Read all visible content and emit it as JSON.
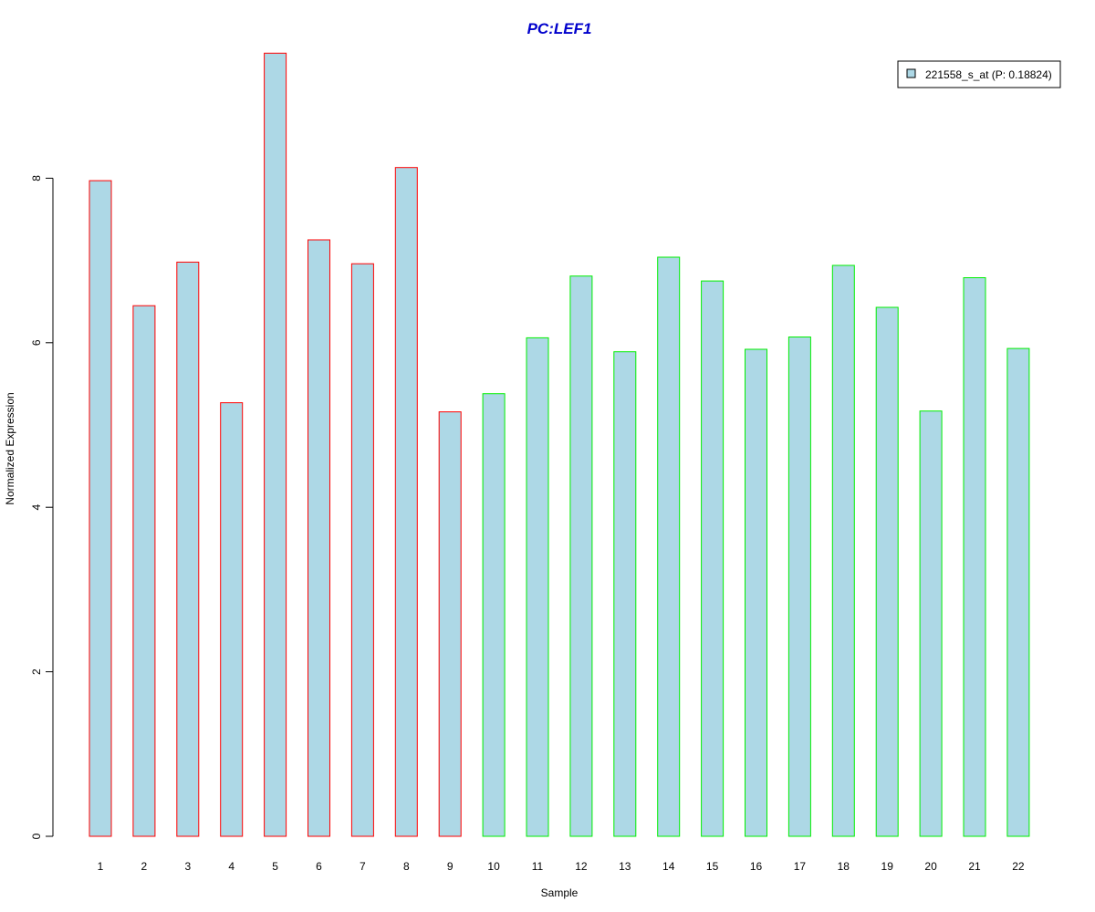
{
  "chart_data": {
    "type": "bar",
    "title": "PC:LEF1",
    "xlabel": "Sample",
    "ylabel": "Normalized Expression",
    "categories": [
      "1",
      "2",
      "3",
      "4",
      "5",
      "6",
      "7",
      "8",
      "9",
      "10",
      "11",
      "12",
      "13",
      "14",
      "15",
      "16",
      "17",
      "18",
      "19",
      "20",
      "21",
      "22"
    ],
    "series": [
      {
        "name": "221558_s_at (P: 0.18824)",
        "values": [
          7.97,
          6.45,
          6.98,
          5.27,
          9.52,
          7.25,
          6.96,
          8.13,
          5.16,
          5.38,
          6.06,
          6.81,
          5.89,
          7.04,
          6.75,
          5.92,
          6.07,
          6.94,
          6.43,
          5.17,
          6.79,
          5.93
        ]
      }
    ],
    "group_border_colors": [
      "#ff0000",
      "#ff0000",
      "#ff0000",
      "#ff0000",
      "#ff0000",
      "#ff0000",
      "#ff0000",
      "#ff0000",
      "#ff0000",
      "#00ee00",
      "#00ee00",
      "#00ee00",
      "#00ee00",
      "#00ee00",
      "#00ee00",
      "#00ee00",
      "#00ee00",
      "#00ee00",
      "#00ee00",
      "#00ee00",
      "#00ee00",
      "#00ee00"
    ],
    "bar_fill": "#add8e6",
    "title_color": "#0000cc",
    "ylim": [
      0,
      9.6
    ],
    "yticks": [
      0,
      2,
      4,
      6,
      8
    ],
    "grid": false,
    "legend_position": "top-right"
  }
}
